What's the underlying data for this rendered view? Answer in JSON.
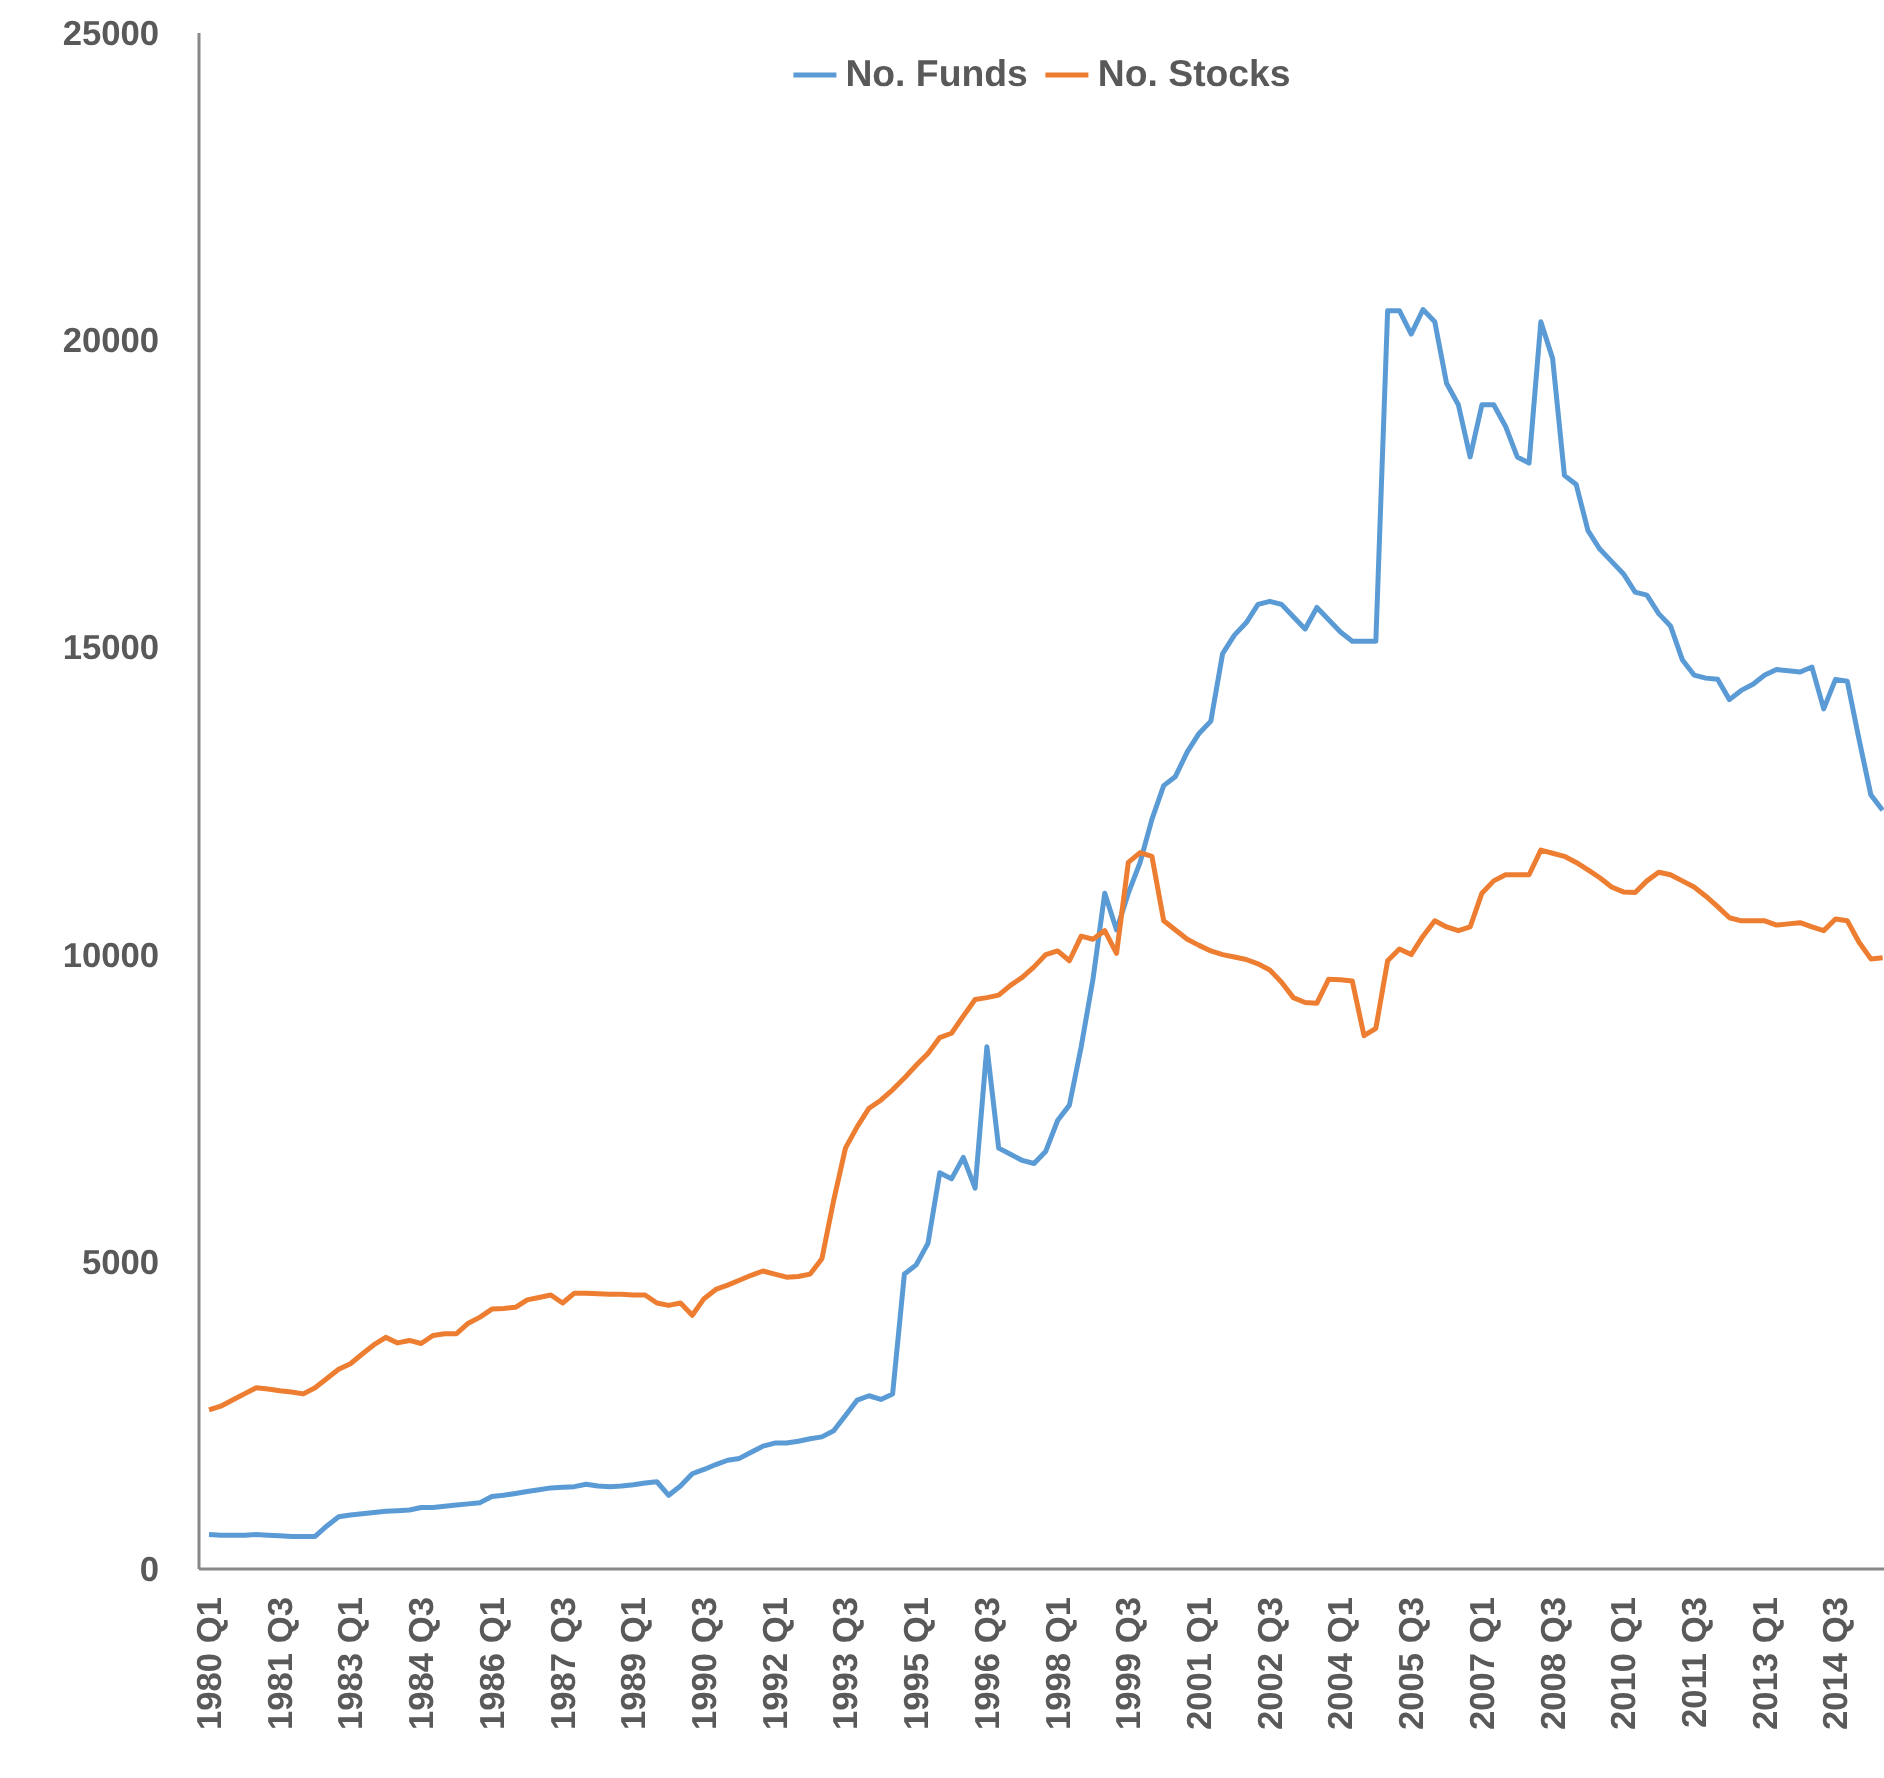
{
  "chart_data": {
    "type": "line",
    "categories": [
      "1980 Q1",
      null,
      null,
      null,
      null,
      null,
      "1981 Q3",
      null,
      null,
      null,
      null,
      null,
      "1983 Q1",
      null,
      null,
      null,
      null,
      null,
      "1984 Q3",
      null,
      null,
      null,
      null,
      null,
      "1986 Q1",
      null,
      null,
      null,
      null,
      null,
      "1987 Q3",
      null,
      null,
      null,
      null,
      null,
      "1989 Q1",
      null,
      null,
      null,
      null,
      null,
      "1990 Q3",
      null,
      null,
      null,
      null,
      null,
      "1992 Q1",
      null,
      null,
      null,
      null,
      null,
      "1993 Q3",
      null,
      null,
      null,
      null,
      null,
      "1995 Q1",
      null,
      null,
      null,
      null,
      null,
      "1996 Q3",
      null,
      null,
      null,
      null,
      null,
      "1998 Q1",
      null,
      null,
      null,
      null,
      null,
      "1999 Q3",
      null,
      null,
      null,
      null,
      null,
      "2001 Q1",
      null,
      null,
      null,
      null,
      null,
      "2002 Q3",
      null,
      null,
      null,
      null,
      null,
      "2004 Q1",
      null,
      null,
      null,
      null,
      null,
      "2005 Q3",
      null,
      null,
      null,
      null,
      null,
      "2007 Q1",
      null,
      null,
      null,
      null,
      null,
      "2008 Q3",
      null,
      null,
      null,
      null,
      null,
      "2010 Q1",
      null,
      null,
      null,
      null,
      null,
      "2011 Q3",
      null,
      null,
      null,
      null,
      null,
      "2013 Q1",
      null,
      null,
      null,
      null,
      null,
      "2014 Q3",
      null,
      null,
      null,
      null
    ],
    "series": [
      {
        "name": "No. Funds",
        "color": "#5b9bd5",
        "values": [
          560,
          550,
          550,
          550,
          560,
          550,
          540,
          530,
          530,
          530,
          700,
          850,
          880,
          900,
          920,
          940,
          950,
          960,
          1000,
          1000,
          1020,
          1040,
          1060,
          1080,
          1180,
          1200,
          1230,
          1260,
          1290,
          1320,
          1330,
          1340,
          1380,
          1350,
          1340,
          1350,
          1370,
          1400,
          1420,
          1200,
          1350,
          1550,
          1620,
          1700,
          1770,
          1800,
          1900,
          2000,
          2050,
          2050,
          2080,
          2120,
          2150,
          2250,
          2500,
          2750,
          2820,
          2760,
          2850,
          4800,
          4950,
          5300,
          6450,
          6350,
          6700,
          6200,
          8500,
          6850,
          6750,
          6650,
          6600,
          6800,
          7300,
          7550,
          8500,
          9600,
          11000,
          10400,
          11000,
          11500,
          12200,
          12750,
          12900,
          13300,
          13600,
          13800,
          14900,
          15200,
          15400,
          15700,
          15750,
          15700,
          15500,
          15300,
          15650,
          15450,
          15250,
          15100,
          15100,
          15100,
          20480,
          20480,
          20100,
          20500,
          20300,
          19300,
          18950,
          18100,
          18950,
          18950,
          18600,
          18100,
          18000,
          20300,
          19700,
          17800,
          17650,
          16900,
          16600,
          16400,
          16200,
          15900,
          15850,
          15550,
          15350,
          14800,
          14550,
          14500,
          14480,
          14150,
          14300,
          14400,
          14550,
          14640,
          14620,
          14600,
          14680,
          14000,
          14480,
          14450,
          13500,
          12600,
          12350
        ]
      },
      {
        "name": "No. Stocks",
        "color": "#ed7d31",
        "values": [
          2590,
          2650,
          2750,
          2850,
          2950,
          2930,
          2900,
          2880,
          2850,
          2950,
          3100,
          3250,
          3340,
          3500,
          3650,
          3770,
          3680,
          3720,
          3670,
          3800,
          3830,
          3830,
          4000,
          4100,
          4230,
          4240,
          4260,
          4380,
          4420,
          4460,
          4330,
          4490,
          4490,
          4480,
          4470,
          4470,
          4460,
          4460,
          4330,
          4290,
          4330,
          4130,
          4400,
          4550,
          4620,
          4700,
          4780,
          4850,
          4800,
          4750,
          4760,
          4800,
          5050,
          6000,
          6850,
          7200,
          7500,
          7630,
          7800,
          7990,
          8200,
          8390,
          8650,
          8720,
          9000,
          9270,
          9300,
          9340,
          9500,
          9630,
          9800,
          10000,
          10060,
          9900,
          10300,
          10250,
          10390,
          10020,
          11500,
          11660,
          11600,
          10550,
          10400,
          10250,
          10150,
          10060,
          10000,
          9960,
          9920,
          9850,
          9750,
          9550,
          9300,
          9220,
          9210,
          9600,
          9590,
          9570,
          8680,
          8800,
          9900,
          10090,
          10000,
          10300,
          10550,
          10450,
          10390,
          10450,
          11000,
          11200,
          11300,
          11300,
          11300,
          11700,
          11650,
          11600,
          11500,
          11380,
          11250,
          11100,
          11020,
          11010,
          11200,
          11340,
          11300,
          11200,
          11100,
          10950,
          10780,
          10600,
          10550,
          10550,
          10550,
          10480,
          10500,
          10520,
          10450,
          10390,
          10580,
          10550,
          10200,
          9930,
          9950
        ]
      }
    ],
    "ylim": [
      0,
      25000
    ],
    "yticks": [
      0,
      5000,
      10000,
      15000,
      20000,
      25000
    ],
    "grid": false,
    "legend": "top",
    "marker": "none",
    "line_style": "solid"
  }
}
